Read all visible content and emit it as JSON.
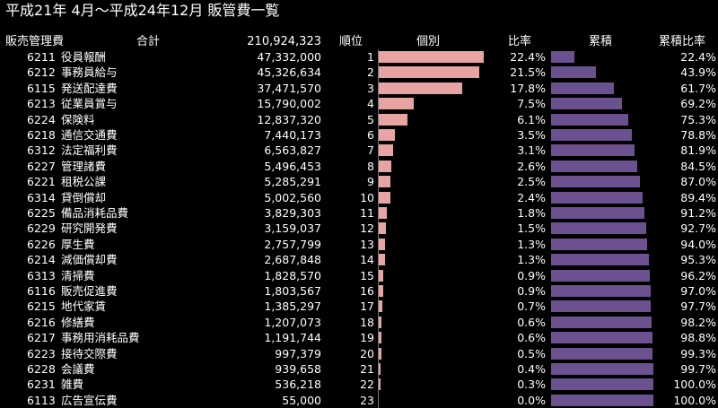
{
  "title": "平成21年 4月～平成24年12月 販管費一覧",
  "header": {
    "account": "販売管理費",
    "total_label": "合計",
    "total_value": "210,924,323",
    "rank": "順位",
    "individual": "個別",
    "ratio": "比率",
    "cumulative": "累積",
    "cumulative_ratio": "累積比率"
  },
  "colors": {
    "individual_bar": "#e8a3a3",
    "cumulative_bar": "#6c5190",
    "background": "#000000"
  },
  "rows": [
    {
      "code": "6211",
      "name": "役員報酬",
      "amount": "47,332,000",
      "rank": "1",
      "ratio": "22.4%",
      "cum_ratio": "22.4%",
      "ratio_value": 22.4,
      "cum_value": 22.4
    },
    {
      "code": "6212",
      "name": "事務員給与",
      "amount": "45,326,634",
      "rank": "2",
      "ratio": "21.5%",
      "cum_ratio": "43.9%",
      "ratio_value": 21.5,
      "cum_value": 43.9
    },
    {
      "code": "6115",
      "name": "発送配達費",
      "amount": "37,471,570",
      "rank": "3",
      "ratio": "17.8%",
      "cum_ratio": "61.7%",
      "ratio_value": 17.8,
      "cum_value": 61.7
    },
    {
      "code": "6213",
      "name": "従業員賞与",
      "amount": "15,790,002",
      "rank": "4",
      "ratio": "7.5%",
      "cum_ratio": "69.2%",
      "ratio_value": 7.5,
      "cum_value": 69.2
    },
    {
      "code": "6224",
      "name": "保険料",
      "amount": "12,837,320",
      "rank": "5",
      "ratio": "6.1%",
      "cum_ratio": "75.3%",
      "ratio_value": 6.1,
      "cum_value": 75.3
    },
    {
      "code": "6218",
      "name": "通信交通費",
      "amount": "7,440,173",
      "rank": "6",
      "ratio": "3.5%",
      "cum_ratio": "78.8%",
      "ratio_value": 3.5,
      "cum_value": 78.8
    },
    {
      "code": "6312",
      "name": "法定福利費",
      "amount": "6,563,827",
      "rank": "7",
      "ratio": "3.1%",
      "cum_ratio": "81.9%",
      "ratio_value": 3.1,
      "cum_value": 81.9
    },
    {
      "code": "6227",
      "name": "管理諸費",
      "amount": "5,496,453",
      "rank": "8",
      "ratio": "2.6%",
      "cum_ratio": "84.5%",
      "ratio_value": 2.6,
      "cum_value": 84.5
    },
    {
      "code": "6221",
      "name": "租税公課",
      "amount": "5,285,291",
      "rank": "9",
      "ratio": "2.5%",
      "cum_ratio": "87.0%",
      "ratio_value": 2.5,
      "cum_value": 87.0
    },
    {
      "code": "6314",
      "name": "貸倒償却",
      "amount": "5,002,560",
      "rank": "10",
      "ratio": "2.4%",
      "cum_ratio": "89.4%",
      "ratio_value": 2.4,
      "cum_value": 89.4
    },
    {
      "code": "6225",
      "name": "備品消耗品費",
      "amount": "3,829,303",
      "rank": "11",
      "ratio": "1.8%",
      "cum_ratio": "91.2%",
      "ratio_value": 1.8,
      "cum_value": 91.2
    },
    {
      "code": "6229",
      "name": "研究開発費",
      "amount": "3,159,037",
      "rank": "12",
      "ratio": "1.5%",
      "cum_ratio": "92.7%",
      "ratio_value": 1.5,
      "cum_value": 92.7
    },
    {
      "code": "6226",
      "name": "厚生費",
      "amount": "2,757,799",
      "rank": "13",
      "ratio": "1.3%",
      "cum_ratio": "94.0%",
      "ratio_value": 1.3,
      "cum_value": 94.0
    },
    {
      "code": "6214",
      "name": "減価償却費",
      "amount": "2,687,848",
      "rank": "14",
      "ratio": "1.3%",
      "cum_ratio": "95.3%",
      "ratio_value": 1.3,
      "cum_value": 95.3
    },
    {
      "code": "6313",
      "name": "清掃費",
      "amount": "1,828,570",
      "rank": "15",
      "ratio": "0.9%",
      "cum_ratio": "96.2%",
      "ratio_value": 0.9,
      "cum_value": 96.2
    },
    {
      "code": "6116",
      "name": "販売促進費",
      "amount": "1,803,567",
      "rank": "16",
      "ratio": "0.9%",
      "cum_ratio": "97.0%",
      "ratio_value": 0.9,
      "cum_value": 97.0
    },
    {
      "code": "6215",
      "name": "地代家賃",
      "amount": "1,385,297",
      "rank": "17",
      "ratio": "0.7%",
      "cum_ratio": "97.7%",
      "ratio_value": 0.7,
      "cum_value": 97.7
    },
    {
      "code": "6216",
      "name": "修繕費",
      "amount": "1,207,073",
      "rank": "18",
      "ratio": "0.6%",
      "cum_ratio": "98.2%",
      "ratio_value": 0.6,
      "cum_value": 98.2
    },
    {
      "code": "6217",
      "name": "事務用消耗品費",
      "amount": "1,191,744",
      "rank": "19",
      "ratio": "0.6%",
      "cum_ratio": "98.8%",
      "ratio_value": 0.6,
      "cum_value": 98.8
    },
    {
      "code": "6223",
      "name": "接待交際費",
      "amount": "997,379",
      "rank": "20",
      "ratio": "0.5%",
      "cum_ratio": "99.3%",
      "ratio_value": 0.5,
      "cum_value": 99.3
    },
    {
      "code": "6228",
      "name": "会議費",
      "amount": "939,658",
      "rank": "21",
      "ratio": "0.4%",
      "cum_ratio": "99.7%",
      "ratio_value": 0.4,
      "cum_value": 99.7
    },
    {
      "code": "6231",
      "name": "雑費",
      "amount": "536,218",
      "rank": "22",
      "ratio": "0.3%",
      "cum_ratio": "100.0%",
      "ratio_value": 0.3,
      "cum_value": 100.0
    },
    {
      "code": "6113",
      "name": "広告宣伝費",
      "amount": "55,000",
      "rank": "23",
      "ratio": "0.0%",
      "cum_ratio": "100.0%",
      "ratio_value": 0.0,
      "cum_value": 100.0
    }
  ]
}
